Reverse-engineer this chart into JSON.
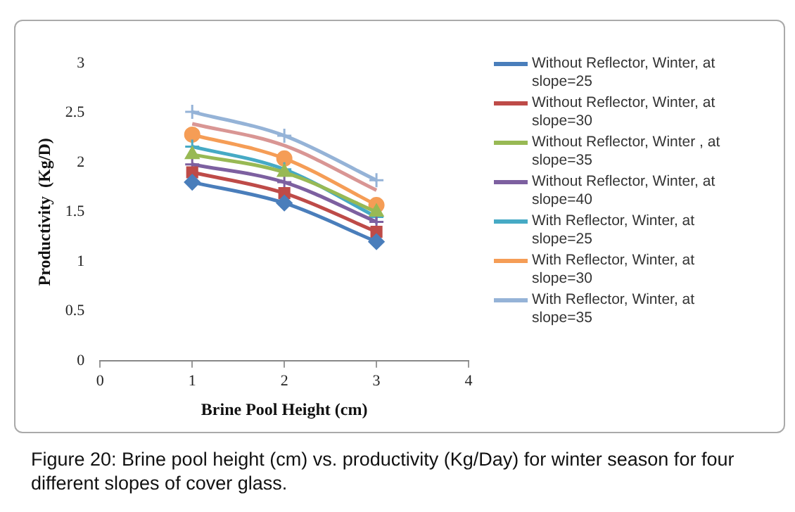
{
  "chart_data": {
    "type": "line",
    "xlabel": "Brine Pool Height (cm)",
    "ylabel": "Productivity  (Kg/D)",
    "x": [
      1,
      2,
      3
    ],
    "xlim": [
      0,
      4
    ],
    "xticks": [
      0,
      1,
      2,
      3,
      4
    ],
    "ylim": [
      0,
      3
    ],
    "yticks": [
      0,
      0.5,
      1,
      1.5,
      2,
      2.5,
      3
    ],
    "grid": false,
    "legend": "right",
    "line_style": "solid",
    "series": [
      {
        "name": "Without Reflector, Winter, at slope=25",
        "color": "#4a7ebb",
        "marker": "diamond",
        "values": [
          1.8,
          1.59,
          1.2
        ]
      },
      {
        "name": "Without Reflector, Winter, at slope=30",
        "color": "#be4b48",
        "marker": "square",
        "values": [
          1.9,
          1.69,
          1.3
        ]
      },
      {
        "name": "Without Reflector, Winter , at slope=35",
        "color": "#98b954",
        "marker": "triangle",
        "values": [
          2.08,
          1.9,
          1.5
        ]
      },
      {
        "name": "Without Reflector, Winter, at slope=40",
        "color": "#7d60a0",
        "marker": "cross",
        "values": [
          1.98,
          1.8,
          1.4
        ]
      },
      {
        "name": "With Reflector, Winter, at slope=25",
        "color": "#46aac5",
        "marker": "cross",
        "values": [
          2.16,
          1.93,
          1.45
        ]
      },
      {
        "name": "With Reflector, Winter, at slope=30",
        "color": "#f59d56",
        "marker": "circle",
        "values": [
          2.28,
          2.04,
          1.57
        ]
      },
      {
        "name": "With Reflector, Winter, at slope=35",
        "color": "#95b3d7",
        "marker": "cross",
        "values": [
          2.51,
          2.27,
          1.82
        ]
      },
      {
        "color": "#d99694",
        "marker": "none",
        "values": [
          2.39,
          2.17,
          1.72
        ]
      }
    ],
    "annotations": [
      "Figure 20: Brine pool height (cm) vs. productivity (Kg/Day) for winter season for four different slopes of cover glass."
    ]
  }
}
